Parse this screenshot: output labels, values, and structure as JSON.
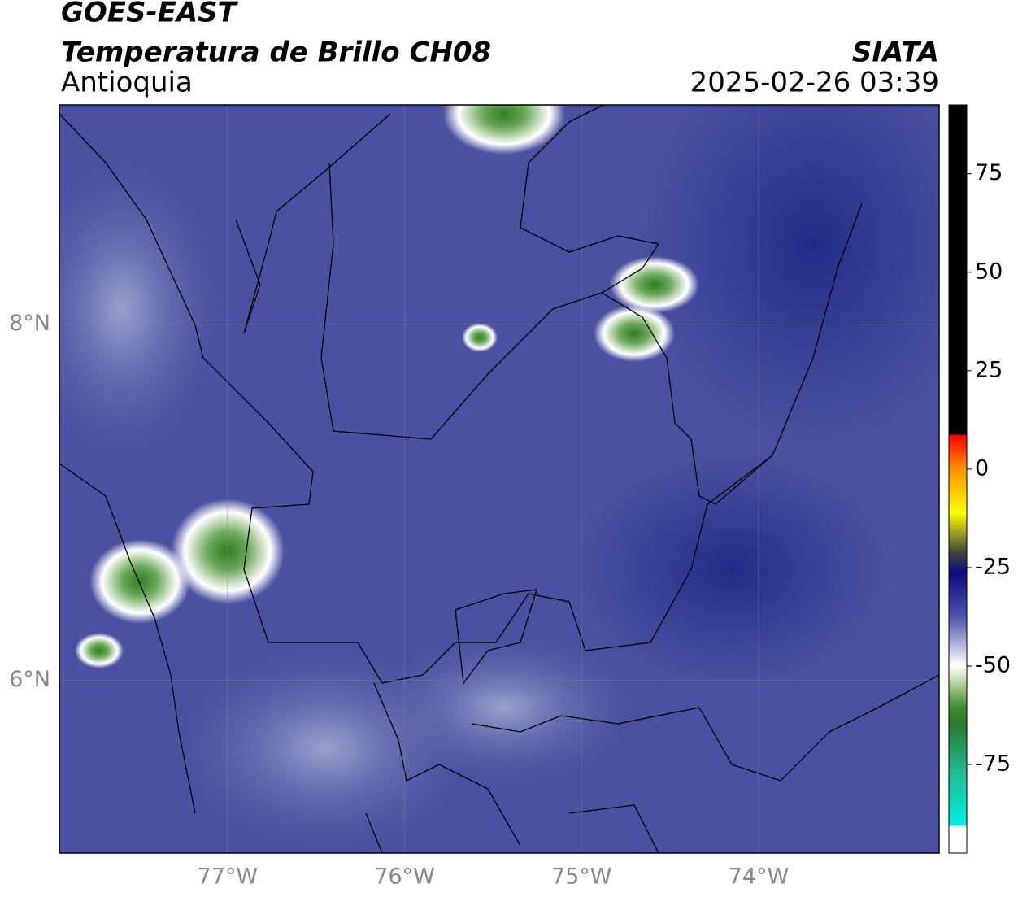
{
  "header": {
    "title": "GOES-EAST",
    "subtitle": "Temperatura de Brillo CH08",
    "agency": "SIATA",
    "region": "Antioquia",
    "timestamp": "2025-02-26 03:39"
  },
  "map": {
    "lonlim": [
      -77.95,
      -72.98
    ],
    "latlim": [
      5.03,
      9.23
    ],
    "xticks": [
      {
        "value": -77,
        "label": "77°W"
      },
      {
        "value": -76,
        "label": "76°W"
      },
      {
        "value": -75,
        "label": "75°W"
      },
      {
        "value": -74,
        "label": "74°W"
      }
    ],
    "yticks": [
      {
        "value": 8,
        "label": "8°N"
      },
      {
        "value": 6,
        "label": "6°N"
      }
    ],
    "grid": true
  },
  "colorbar": {
    "lim": [
      -97.5,
      92.5
    ],
    "ticks": [
      75,
      50,
      25,
      0,
      -25,
      -50,
      -75
    ]
  }
}
